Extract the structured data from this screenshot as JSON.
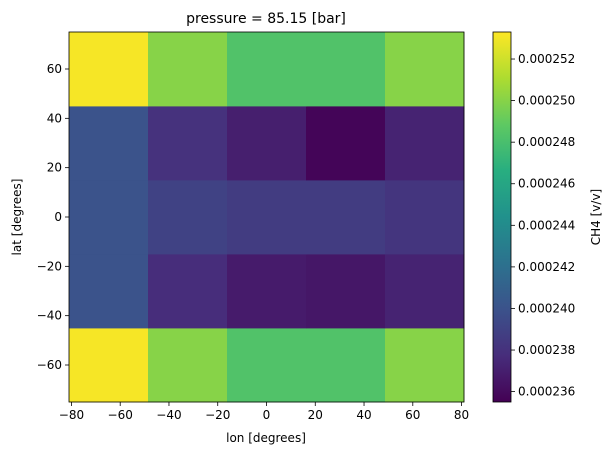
{
  "chart_data": {
    "type": "heatmap",
    "title": "pressure = 85.15 [bar]",
    "xlabel": "lon [degrees]",
    "ylabel": "lat [degrees]",
    "colorbar_label": "CH4 [v/v]",
    "colormap": "viridis",
    "grid": false,
    "x_edges": [
      -81,
      -48.6,
      -16.2,
      16.2,
      48.6,
      81
    ],
    "y_edges": [
      -75,
      -45,
      -15,
      15,
      45,
      75
    ],
    "xlim": [
      -81,
      81
    ],
    "ylim": [
      -75,
      75
    ],
    "x_ticks": [
      {
        "value": -80,
        "label": "−80"
      },
      {
        "value": -60,
        "label": "−60"
      },
      {
        "value": -40,
        "label": "−40"
      },
      {
        "value": -20,
        "label": "−20"
      },
      {
        "value": 0,
        "label": "0"
      },
      {
        "value": 20,
        "label": "20"
      },
      {
        "value": 40,
        "label": "40"
      },
      {
        "value": 60,
        "label": "60"
      },
      {
        "value": 80,
        "label": "80"
      }
    ],
    "y_ticks": [
      {
        "value": -60,
        "label": "−60"
      },
      {
        "value": -40,
        "label": "−40"
      },
      {
        "value": -20,
        "label": "−20"
      },
      {
        "value": 0,
        "label": "0"
      },
      {
        "value": 20,
        "label": "20"
      },
      {
        "value": 40,
        "label": "40"
      },
      {
        "value": 60,
        "label": "60"
      }
    ],
    "values": [
      [
        0.0002531,
        0.00025,
        0.0002483,
        0.0002483,
        0.00025
      ],
      [
        0.00024,
        0.0002377,
        0.0002368,
        0.0002366,
        0.0002372
      ],
      [
        0.00024,
        0.000239,
        0.0002386,
        0.0002386,
        0.0002382
      ],
      [
        0.00024,
        0.000238,
        0.000237,
        0.0002357,
        0.0002372
      ],
      [
        0.0002531,
        0.00025,
        0.0002483,
        0.0002483,
        0.00025
      ]
    ],
    "colorbar": {
      "vmin": 0.0002355,
      "vmax": 0.0002533,
      "ticks": [
        {
          "value": 0.000236,
          "label": "0.000236"
        },
        {
          "value": 0.000238,
          "label": "0.000238"
        },
        {
          "value": 0.00024,
          "label": "0.000240"
        },
        {
          "value": 0.000242,
          "label": "0.000242"
        },
        {
          "value": 0.000244,
          "label": "0.000244"
        },
        {
          "value": 0.000246,
          "label": "0.000246"
        },
        {
          "value": 0.000248,
          "label": "0.000248"
        },
        {
          "value": 0.00025,
          "label": "0.000250"
        },
        {
          "value": 0.000252,
          "label": "0.000252"
        }
      ]
    }
  }
}
